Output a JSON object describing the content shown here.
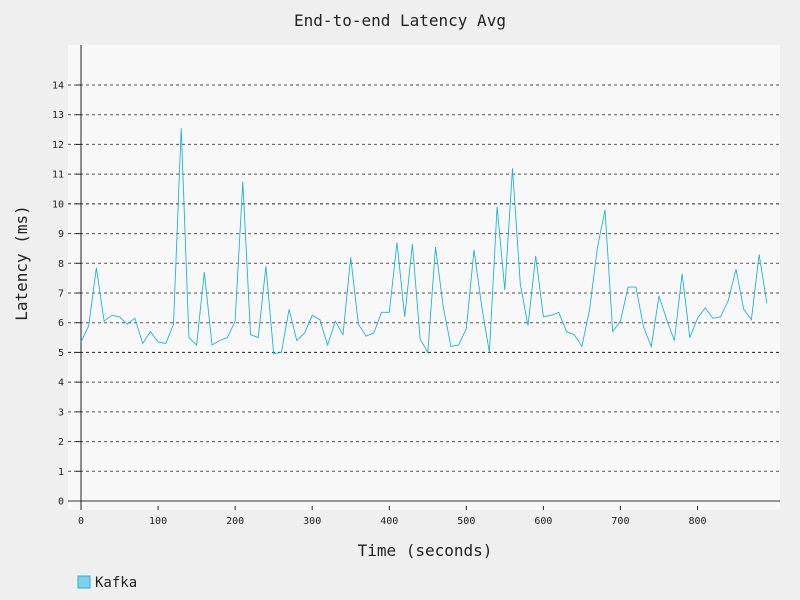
{
  "chart_data": {
    "type": "line",
    "title": "End-to-end Latency Avg",
    "xlabel": "Time (seconds)",
    "ylabel": "Latency (ms)",
    "xlim": [
      -2,
      910
    ],
    "ylim": [
      -0.3,
      15.2
    ],
    "x_ticks": [
      0,
      100,
      200,
      300,
      400,
      500,
      600,
      700,
      800
    ],
    "y_ticks": [
      0,
      1,
      2,
      3,
      4,
      5,
      6,
      7,
      8,
      9,
      10,
      11,
      12,
      13,
      14
    ],
    "major_gridlines": [
      5,
      10
    ],
    "grid": true,
    "legend_position": "bottom-left",
    "series": [
      {
        "name": "Kafka",
        "color": "#1fb5d8",
        "legend_fill": "#7dd3ec",
        "x": [
          0,
          10,
          20,
          30,
          40,
          50,
          60,
          70,
          80,
          90,
          100,
          110,
          120,
          130,
          140,
          150,
          160,
          170,
          180,
          190,
          200,
          210,
          220,
          230,
          240,
          250,
          260,
          270,
          280,
          290,
          300,
          310,
          320,
          330,
          340,
          350,
          360,
          370,
          380,
          390,
          400,
          410,
          420,
          430,
          440,
          450,
          460,
          470,
          480,
          490,
          500,
          510,
          520,
          530,
          540,
          550,
          560,
          570,
          580,
          590,
          600,
          610,
          620,
          630,
          640,
          650,
          660,
          670,
          680,
          690,
          700,
          710,
          720,
          730,
          740,
          750,
          760,
          770,
          780,
          790,
          800,
          810,
          820,
          830,
          840,
          850,
          860,
          870,
          880,
          890
        ],
        "values": [
          5.35,
          5.9,
          7.85,
          6.05,
          6.25,
          6.2,
          5.95,
          6.15,
          5.3,
          5.7,
          5.35,
          5.3,
          5.95,
          12.55,
          5.5,
          5.25,
          7.7,
          5.25,
          5.4,
          5.5,
          6.05,
          10.75,
          5.6,
          5.5,
          7.9,
          4.95,
          5.0,
          6.45,
          5.4,
          5.65,
          6.25,
          6.1,
          5.25,
          6.05,
          5.6,
          8.2,
          5.95,
          5.55,
          5.65,
          6.35,
          6.35,
          8.7,
          6.2,
          8.65,
          5.45,
          5.0,
          8.55,
          6.55,
          5.2,
          5.25,
          5.8,
          8.45,
          6.55,
          5.0,
          9.9,
          7.1,
          11.2,
          7.3,
          5.9,
          8.25,
          6.2,
          6.25,
          6.35,
          5.7,
          5.6,
          5.2,
          6.45,
          8.5,
          9.8,
          5.7,
          6.05,
          7.2,
          7.2,
          5.85,
          5.2,
          6.9,
          6.1,
          5.4,
          7.65,
          5.5,
          6.15,
          6.5,
          6.15,
          6.2,
          6.75,
          7.8,
          6.45,
          6.1,
          8.3,
          6.65
        ]
      }
    ]
  }
}
